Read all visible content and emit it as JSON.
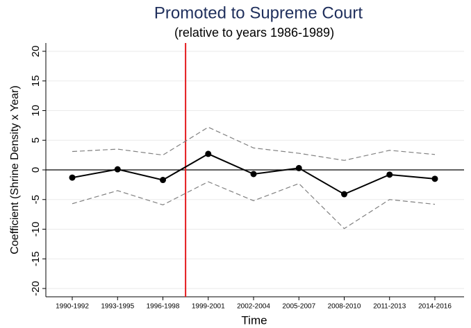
{
  "chart_data": {
    "type": "line",
    "title": "Promoted to Supreme Court",
    "subtitle": "(relative to years 1986-1989)",
    "x_label": "Time",
    "y_label": "Coefficient (Shrine Density x Year)",
    "categories": [
      "1990-1992",
      "1993-1995",
      "1996-1998",
      "1999-2001",
      "2002-2004",
      "2005-2007",
      "2008-2010",
      "2011-2013",
      "2014-2016"
    ],
    "values": [
      -1.3,
      0.1,
      -1.7,
      2.7,
      -0.7,
      0.3,
      -4.1,
      -0.8,
      -1.5
    ],
    "upper": [
      3.1,
      3.5,
      2.5,
      7.2,
      3.7,
      2.8,
      1.6,
      3.3,
      2.6
    ],
    "lower": [
      -5.7,
      -3.5,
      -5.9,
      -2.0,
      -5.2,
      -2.3,
      -9.9,
      -5.0,
      -5.8
    ],
    "color": "#000000",
    "band_color": "#808080",
    "reference_line_y": 0,
    "vertical_line_x": 2.5,
    "vertical_line_color": "#e41a1c",
    "ylim": [
      -21.4,
      21.4
    ],
    "yticks": [
      20,
      15,
      10,
      5,
      0,
      -5,
      -10,
      -15,
      -20
    ],
    "grid": true
  }
}
